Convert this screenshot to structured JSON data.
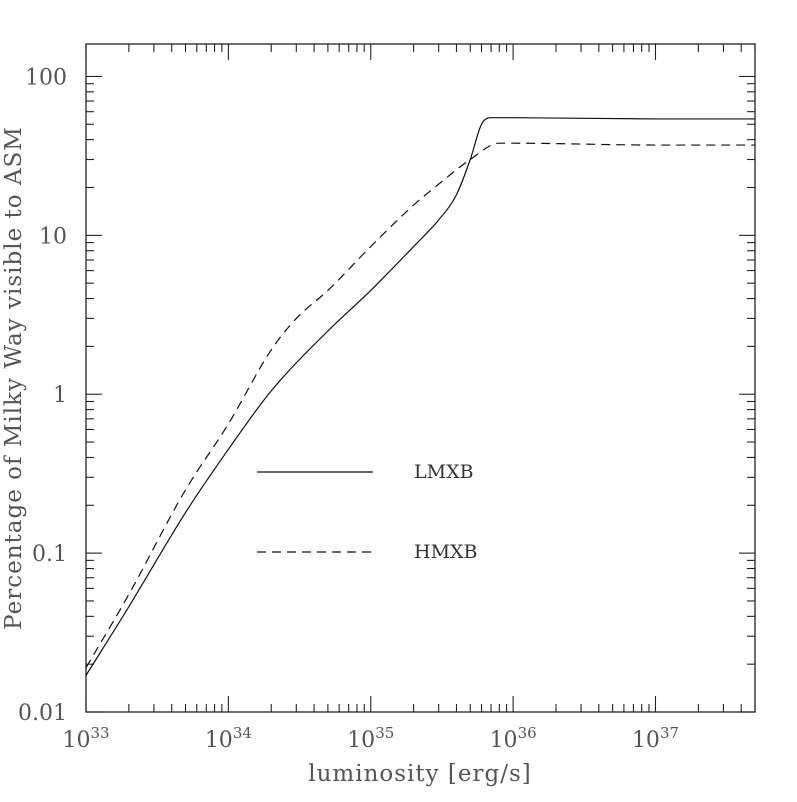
{
  "chart_data": {
    "type": "line",
    "xlabel": "luminosity [erg/s]",
    "ylabel": "Percentage of Milky Way visible to ASM",
    "x_scale": "log",
    "y_scale": "log",
    "xlim": [
      1e+33,
      5e+37
    ],
    "ylim": [
      0.01,
      160
    ],
    "x_ticks": [
      {
        "value": 1e+33,
        "base": "10",
        "exp": "33"
      },
      {
        "value": 1e+34,
        "base": "10",
        "exp": "34"
      },
      {
        "value": 1e+35,
        "base": "10",
        "exp": "35"
      },
      {
        "value": 1e+36,
        "base": "10",
        "exp": "36"
      },
      {
        "value": 1e+37,
        "base": "10",
        "exp": "37"
      }
    ],
    "y_ticks": [
      {
        "value": 0.01,
        "label": "0.01"
      },
      {
        "value": 0.1,
        "label": "0.1"
      },
      {
        "value": 1,
        "label": "1"
      },
      {
        "value": 10,
        "label": "10"
      },
      {
        "value": 100,
        "label": "100"
      }
    ],
    "grid": false,
    "legend": "center-left, inside plot",
    "series": [
      {
        "name": "LMXB",
        "style": "solid",
        "x": [
          1e+33,
          2e+33,
          5e+33,
          1e+34,
          2e+34,
          5e+34,
          1e+35,
          2e+35,
          3e+35,
          4e+35,
          5e+35,
          6e+35,
          7e+35,
          8e+35,
          1e+36,
          1e+37,
          5e+37
        ],
        "y": [
          0.017,
          0.046,
          0.18,
          0.45,
          1.05,
          2.5,
          4.5,
          8.5,
          12.5,
          18,
          30,
          50,
          55,
          55,
          55,
          54,
          54
        ]
      },
      {
        "name": "HMXB",
        "style": "dashed",
        "x": [
          1e+33,
          2e+33,
          5e+33,
          1e+34,
          2e+34,
          3e+34,
          5e+34,
          1e+35,
          2e+35,
          3e+35,
          5e+35,
          8e+35,
          1e+36,
          1e+37,
          5e+37
        ],
        "y": [
          0.019,
          0.055,
          0.25,
          0.65,
          1.9,
          3.0,
          4.5,
          8.5,
          15.5,
          21,
          30,
          38,
          38,
          37,
          37
        ]
      }
    ]
  }
}
